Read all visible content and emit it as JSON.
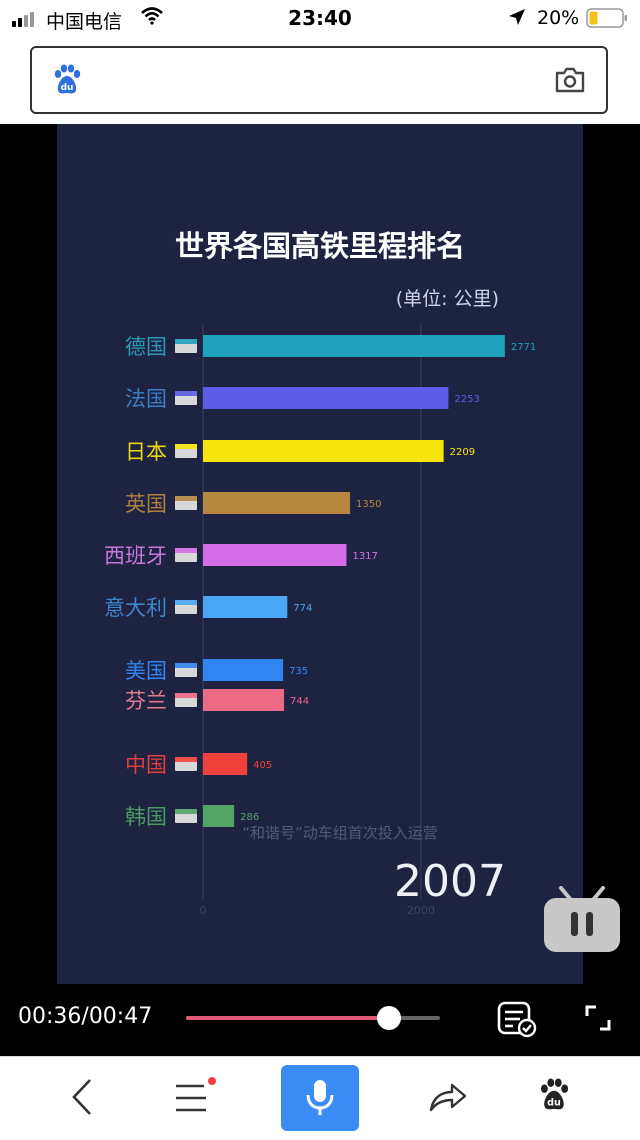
{
  "status_bar": {
    "carrier": "中国电信",
    "time": "23:40",
    "battery": "20%",
    "icons": [
      "signal-icon",
      "wifi-icon",
      "location-arrow-icon",
      "battery-icon"
    ]
  },
  "search_bar": {
    "logo": "baidu-paw-icon",
    "camera": "camera-icon"
  },
  "video": {
    "overlay_caption": "“和谐号”动车组首次投入运营",
    "year": "2007",
    "player": {
      "time_display": "00:36/00:47",
      "progress": 0.8,
      "icons": [
        "subtitle-icon",
        "fullscreen-icon",
        "tv-icon"
      ]
    }
  },
  "chart_data": {
    "type": "bar",
    "orientation": "horizontal",
    "title": "世界各国高铁里程排名",
    "subtitle": "(单位: 公里)",
    "categories": [
      "德国",
      "法国",
      "日本",
      "英国",
      "西班牙",
      "意大利",
      "美国",
      "芬兰",
      "中国",
      "韩国"
    ],
    "values": [
      2771,
      2253,
      2209,
      1350,
      1317,
      774,
      735,
      744,
      405,
      286
    ],
    "bar_colors": [
      "#1fa2bb",
      "#5b5ce8",
      "#f5e50b",
      "#b78640",
      "#d56de6",
      "#4aa7f5",
      "#2f86f2",
      "#ec6a84",
      "#f0413a",
      "#53a566"
    ],
    "label_colors": [
      "#2a99b8",
      "#3c7ec6",
      "#e8d80e",
      "#b0813d",
      "#c57ad8",
      "#3f86c9",
      "#2f86f2",
      "#e37c92",
      "#e0403c",
      "#4a9a62"
    ],
    "x_ticks": [
      0,
      2000
    ],
    "xlim": [
      0,
      2800
    ],
    "grid": true
  },
  "toolbar": {
    "items": [
      "back-icon",
      "menu-icon",
      "mic-icon",
      "share-icon",
      "baidu-paw-icon"
    ]
  }
}
